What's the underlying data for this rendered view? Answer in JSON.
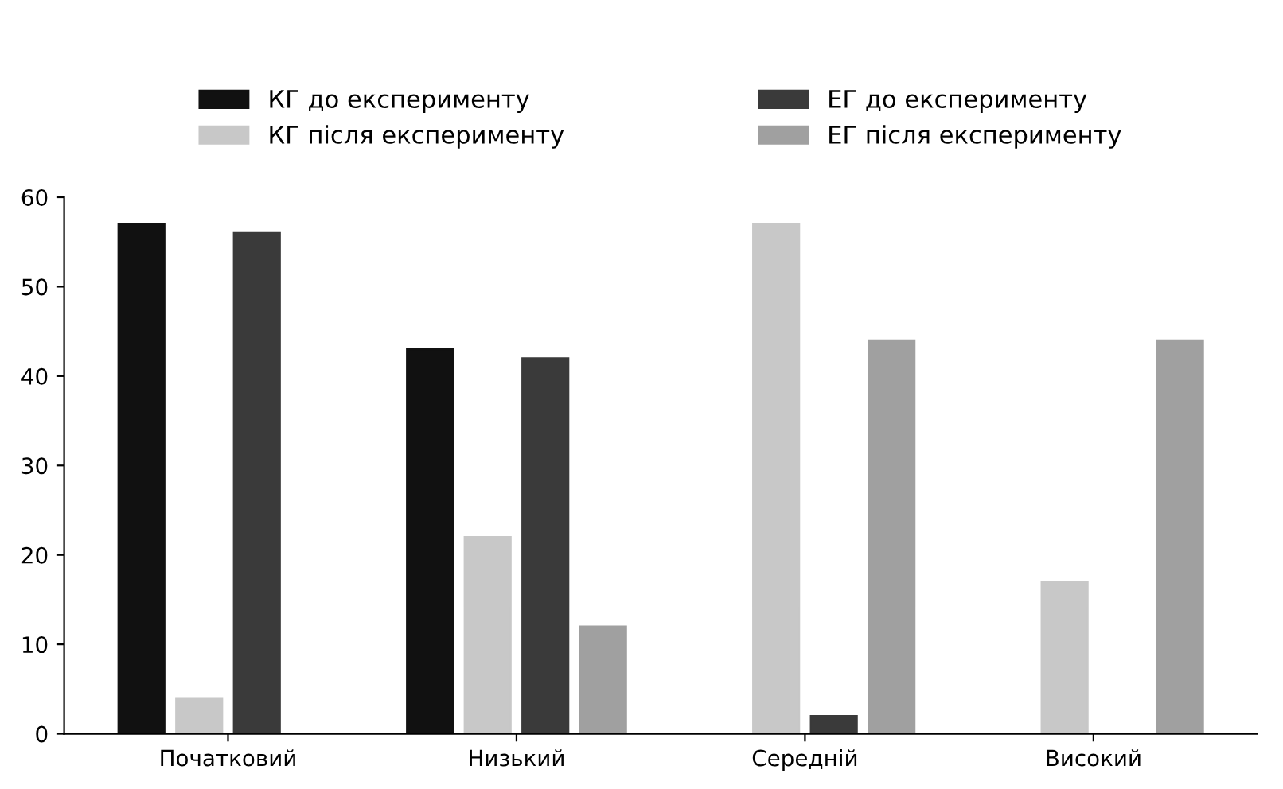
{
  "chart_data": {
    "type": "bar",
    "categories": [
      "Початковий",
      "Низький",
      "Середній",
      "Високий"
    ],
    "series": [
      {
        "name": "КГ до експерименту",
        "color": "#111111",
        "values": [
          57,
          43,
          0,
          0
        ]
      },
      {
        "name": "КГ після експерименту",
        "color": "#c8c8c8",
        "values": [
          4,
          22,
          57,
          17
        ]
      },
      {
        "name": "ЕГ до експерименту",
        "color": "#3a3a3a",
        "values": [
          56,
          42,
          2,
          0
        ]
      },
      {
        "name": "ЕГ після експерименту",
        "color": "#a0a0a0",
        "values": [
          0,
          12,
          44,
          44
        ]
      }
    ],
    "ylim": [
      0,
      60
    ],
    "yticks": [
      0,
      10,
      20,
      30,
      40,
      50,
      60
    ],
    "grid": false,
    "legend": "top"
  }
}
